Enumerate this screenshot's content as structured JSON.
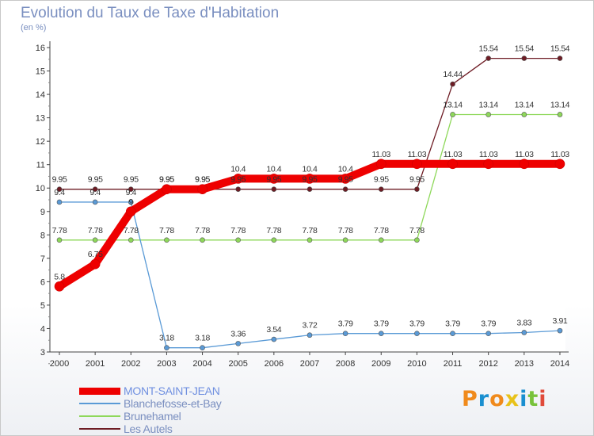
{
  "header": {
    "title": "Evolution du Taux de Taxe d'Habitation",
    "subtitle": "(en %)"
  },
  "logo": {
    "text": "Proxiti",
    "colors": [
      "#f08a1c",
      "#1a8fd0",
      "#f08a1c",
      "#e8c21a",
      "#1a8fd0",
      "#78c23a",
      "#e04a3a"
    ]
  },
  "chart_data": {
    "type": "line",
    "x": [
      2000,
      2001,
      2002,
      2003,
      2004,
      2005,
      2006,
      2007,
      2008,
      2009,
      2010,
      2011,
      2012,
      2013,
      2014
    ],
    "ylim": [
      3,
      16
    ],
    "yticks": [
      3,
      4,
      5,
      6,
      7,
      8,
      9,
      10,
      11,
      12,
      13,
      14,
      15,
      16
    ],
    "grid": false,
    "legend_position": "bottom-left",
    "series": [
      {
        "name": "Les Autels",
        "color": "#6e1c24",
        "values": [
          9.95,
          9.95,
          9.95,
          9.95,
          9.95,
          9.95,
          9.95,
          9.95,
          9.95,
          9.95,
          9.95,
          14.44,
          15.54,
          15.54,
          15.54
        ],
        "labels": [
          "9.95",
          "9.95",
          "9.95",
          "9.95",
          "9.95",
          "9.95",
          "9.95",
          "9.95",
          "9.95",
          "9.95",
          "9.95",
          "14.44",
          "15.54",
          "15.54",
          "15.54"
        ]
      },
      {
        "name": "Brunehamel",
        "color": "#8ed85a",
        "values": [
          7.78,
          7.78,
          7.78,
          7.78,
          7.78,
          7.78,
          7.78,
          7.78,
          7.78,
          7.78,
          7.78,
          13.14,
          13.14,
          13.14,
          13.14
        ],
        "labels": [
          "7.78",
          "7.78",
          "7.78",
          "7.78",
          "7.78",
          "7.78",
          "7.78",
          "7.78",
          "7.78",
          "7.78",
          "7.78",
          "13.14",
          "13.14",
          "13.14",
          "13.14"
        ]
      },
      {
        "name": "Blanchefosse-et-Bay",
        "color": "#5a9ad6",
        "values": [
          9.4,
          9.4,
          9.4,
          3.18,
          3.18,
          3.36,
          3.54,
          3.72,
          3.79,
          3.79,
          3.79,
          3.79,
          3.79,
          3.83,
          3.91
        ],
        "labels": [
          "9.4",
          "9.4",
          "9.4",
          "3.18",
          "3.18",
          "3.36",
          "3.54",
          "3.72",
          "3.79",
          "3.79",
          "3.79",
          "3.79",
          "3.79",
          "3.83",
          "3.91"
        ]
      },
      {
        "name": "MONT-SAINT-JEAN",
        "color": "#ee0000",
        "values": [
          5.8,
          6.75,
          9,
          9.95,
          9.95,
          10.4,
          10.4,
          10.4,
          10.4,
          11.03,
          11.03,
          11.03,
          11.03,
          11.03,
          11.03
        ],
        "labels": [
          "5.8",
          "6.75",
          "9",
          "9.95",
          "9.95",
          "10.4",
          "10.4",
          "10.4",
          "10.4",
          "11.03",
          "11.03",
          "11.03",
          "11.03",
          "11.03",
          "11.03"
        ]
      }
    ],
    "legend_order": [
      "MONT-SAINT-JEAN",
      "Blanchefosse-et-Bay",
      "Brunehamel",
      "Les Autels"
    ]
  }
}
